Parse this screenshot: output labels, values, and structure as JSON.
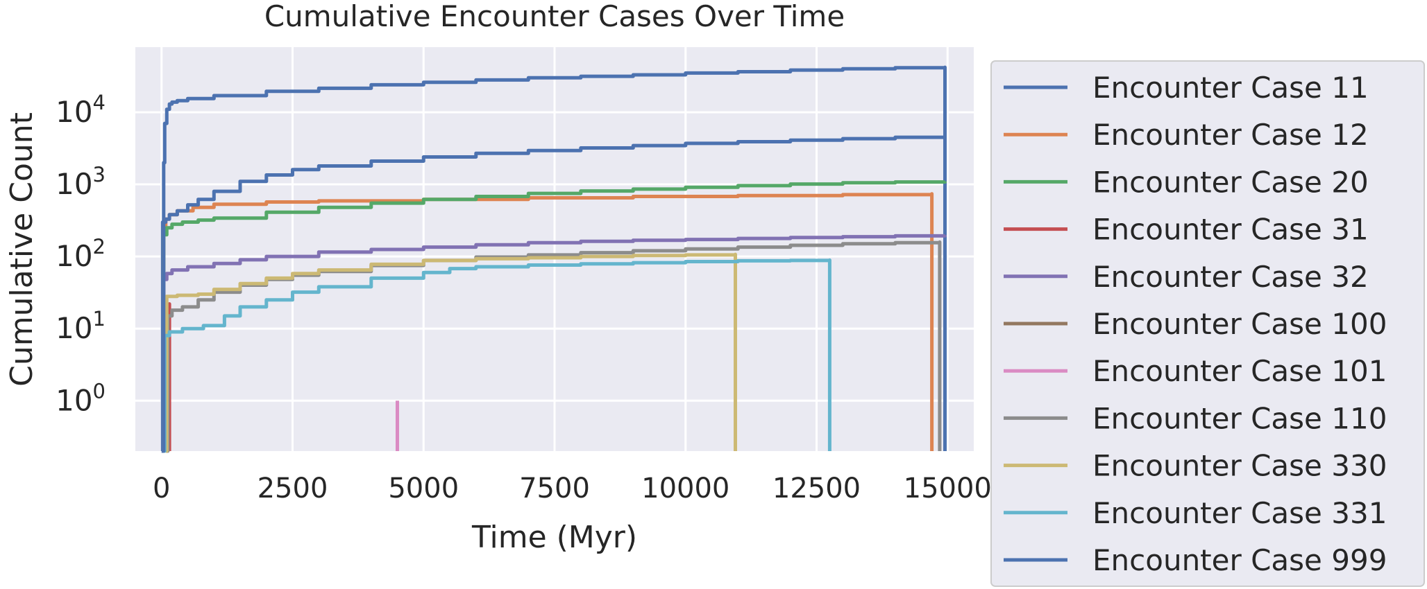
{
  "chart_data": {
    "type": "line",
    "title": "Cumulative Encounter Cases Over Time",
    "xlabel": "Time (Myr)",
    "ylabel": "Cumulative Count",
    "xlim": [
      -500,
      15500
    ],
    "ylim": [
      0.2,
      80000
    ],
    "yscale": "log",
    "grid": true,
    "legend_position": "right, outside plot",
    "x_ticks": [
      {
        "value": 0,
        "label": "0"
      },
      {
        "value": 2500,
        "label": "2500"
      },
      {
        "value": 5000,
        "label": "5000"
      },
      {
        "value": 7500,
        "label": "7500"
      },
      {
        "value": 10000,
        "label": "10000"
      },
      {
        "value": 12500,
        "label": "12500"
      },
      {
        "value": 15000,
        "label": "15000"
      }
    ],
    "y_ticks": [
      {
        "value": 1,
        "base": "10",
        "exp": "0"
      },
      {
        "value": 10,
        "base": "10",
        "exp": "1"
      },
      {
        "value": 100,
        "base": "10",
        "exp": "2"
      },
      {
        "value": 1000,
        "base": "10",
        "exp": "3"
      },
      {
        "value": 10000,
        "base": "10",
        "exp": "4"
      }
    ],
    "series": [
      {
        "name": "Encounter Case 11",
        "color": "#4c72b0",
        "x": [
          0,
          20,
          40,
          60,
          100,
          150,
          200,
          300,
          500,
          1000,
          2000,
          3000,
          4000,
          5000,
          6000,
          7000,
          8000,
          9000,
          10000,
          11000,
          12000,
          13000,
          14000,
          14950,
          14950
        ],
        "y": [
          0.2,
          300,
          2000,
          7000,
          11000,
          13000,
          13800,
          14500,
          15500,
          17000,
          19500,
          21500,
          24000,
          26000,
          28000,
          30000,
          31500,
          33000,
          35000,
          36500,
          38500,
          40000,
          41500,
          42000,
          0.2
        ]
      },
      {
        "name": "Encounter Case 12",
        "color": "#dd8452",
        "x": [
          20,
          40,
          80,
          150,
          300,
          600,
          1000,
          2000,
          3000,
          5000,
          7000,
          9000,
          11000,
          13000,
          14700,
          14700
        ],
        "y": [
          0.2,
          250,
          330,
          380,
          430,
          480,
          530,
          570,
          590,
          620,
          650,
          680,
          700,
          720,
          740,
          0.2
        ]
      },
      {
        "name": "Encounter Case 20",
        "color": "#55a868",
        "x": [
          20,
          40,
          100,
          200,
          400,
          700,
          1000,
          2000,
          3000,
          4000,
          5000,
          6000,
          7000,
          8000,
          9000,
          10000,
          11000,
          12000,
          13000,
          14000,
          14950
        ],
        "y": [
          0.2,
          200,
          250,
          280,
          300,
          320,
          340,
          410,
          480,
          550,
          620,
          680,
          750,
          810,
          860,
          910,
          960,
          1010,
          1050,
          1080,
          1100
        ]
      },
      {
        "name": "Encounter Case 31",
        "color": "#c44e52",
        "x": [
          100,
          110,
          130,
          150,
          150
        ],
        "y": [
          0.2,
          8,
          18,
          22,
          0.2
        ]
      },
      {
        "name": "Encounter Case 32",
        "color": "#8172b3",
        "x": [
          20,
          40,
          100,
          200,
          500,
          1000,
          1500,
          2000,
          3000,
          4000,
          5000,
          6000,
          7000,
          8000,
          9000,
          10000,
          11000,
          12000,
          13000,
          14000,
          14950
        ],
        "y": [
          0.2,
          48,
          58,
          65,
          72,
          80,
          90,
          100,
          115,
          125,
          135,
          145,
          155,
          162,
          168,
          172,
          178,
          183,
          188,
          193,
          198
        ]
      },
      {
        "name": "Encounter Case 100",
        "color": "#937860",
        "x": [],
        "y": []
      },
      {
        "name": "Encounter Case 101",
        "color": "#da8bc3",
        "x": [
          4500,
          4500
        ],
        "y": [
          0.2,
          1
        ]
      },
      {
        "name": "Encounter Case 110",
        "color": "#8c8c8c",
        "x": [
          100,
          120,
          200,
          400,
          700,
          1000,
          1500,
          2000,
          2500,
          3000,
          4000,
          5000,
          6000,
          7000,
          8000,
          9000,
          10000,
          11000,
          12000,
          13000,
          14000,
          14850,
          14850
        ],
        "y": [
          0.2,
          15,
          18,
          20,
          25,
          32,
          40,
          48,
          55,
          62,
          75,
          88,
          98,
          105,
          113,
          120,
          127,
          135,
          143,
          150,
          155,
          158,
          0.2
        ]
      },
      {
        "name": "Encounter Case 330",
        "color": "#ccb974",
        "x": [
          80,
          100,
          300,
          700,
          1000,
          1500,
          2000,
          2500,
          3000,
          4000,
          5000,
          6000,
          7000,
          8000,
          9000,
          10000,
          10950,
          10950
        ],
        "y": [
          0.2,
          28,
          29,
          30,
          35,
          42,
          50,
          58,
          65,
          78,
          88,
          93,
          96,
          100,
          103,
          105,
          107,
          0.2
        ]
      },
      {
        "name": "Encounter Case 331",
        "color": "#64b5cd",
        "x": [
          40,
          60,
          150,
          400,
          800,
          1200,
          1500,
          2000,
          2500,
          3000,
          4000,
          5000,
          5500,
          6000,
          7000,
          8000,
          9000,
          10000,
          11000,
          12000,
          12750,
          12750
        ],
        "y": [
          0.2,
          8,
          9,
          10,
          11,
          15,
          20,
          25,
          32,
          38,
          50,
          60,
          68,
          72,
          76,
          79,
          82,
          85,
          87,
          88,
          89,
          0.2
        ]
      },
      {
        "name": "Encounter Case 999",
        "color": "#4c72b0",
        "x": [
          20,
          40,
          80,
          150,
          300,
          500,
          700,
          1000,
          1500,
          2000,
          2500,
          3000,
          4000,
          5000,
          6000,
          7000,
          8000,
          9000,
          10000,
          11000,
          12000,
          13000,
          14000,
          14950
        ],
        "y": [
          0.2,
          300,
          330,
          380,
          430,
          520,
          620,
          800,
          1100,
          1350,
          1600,
          1800,
          2100,
          2400,
          2700,
          2950,
          3200,
          3450,
          3700,
          3900,
          4100,
          4300,
          4500,
          4700
        ]
      }
    ]
  }
}
